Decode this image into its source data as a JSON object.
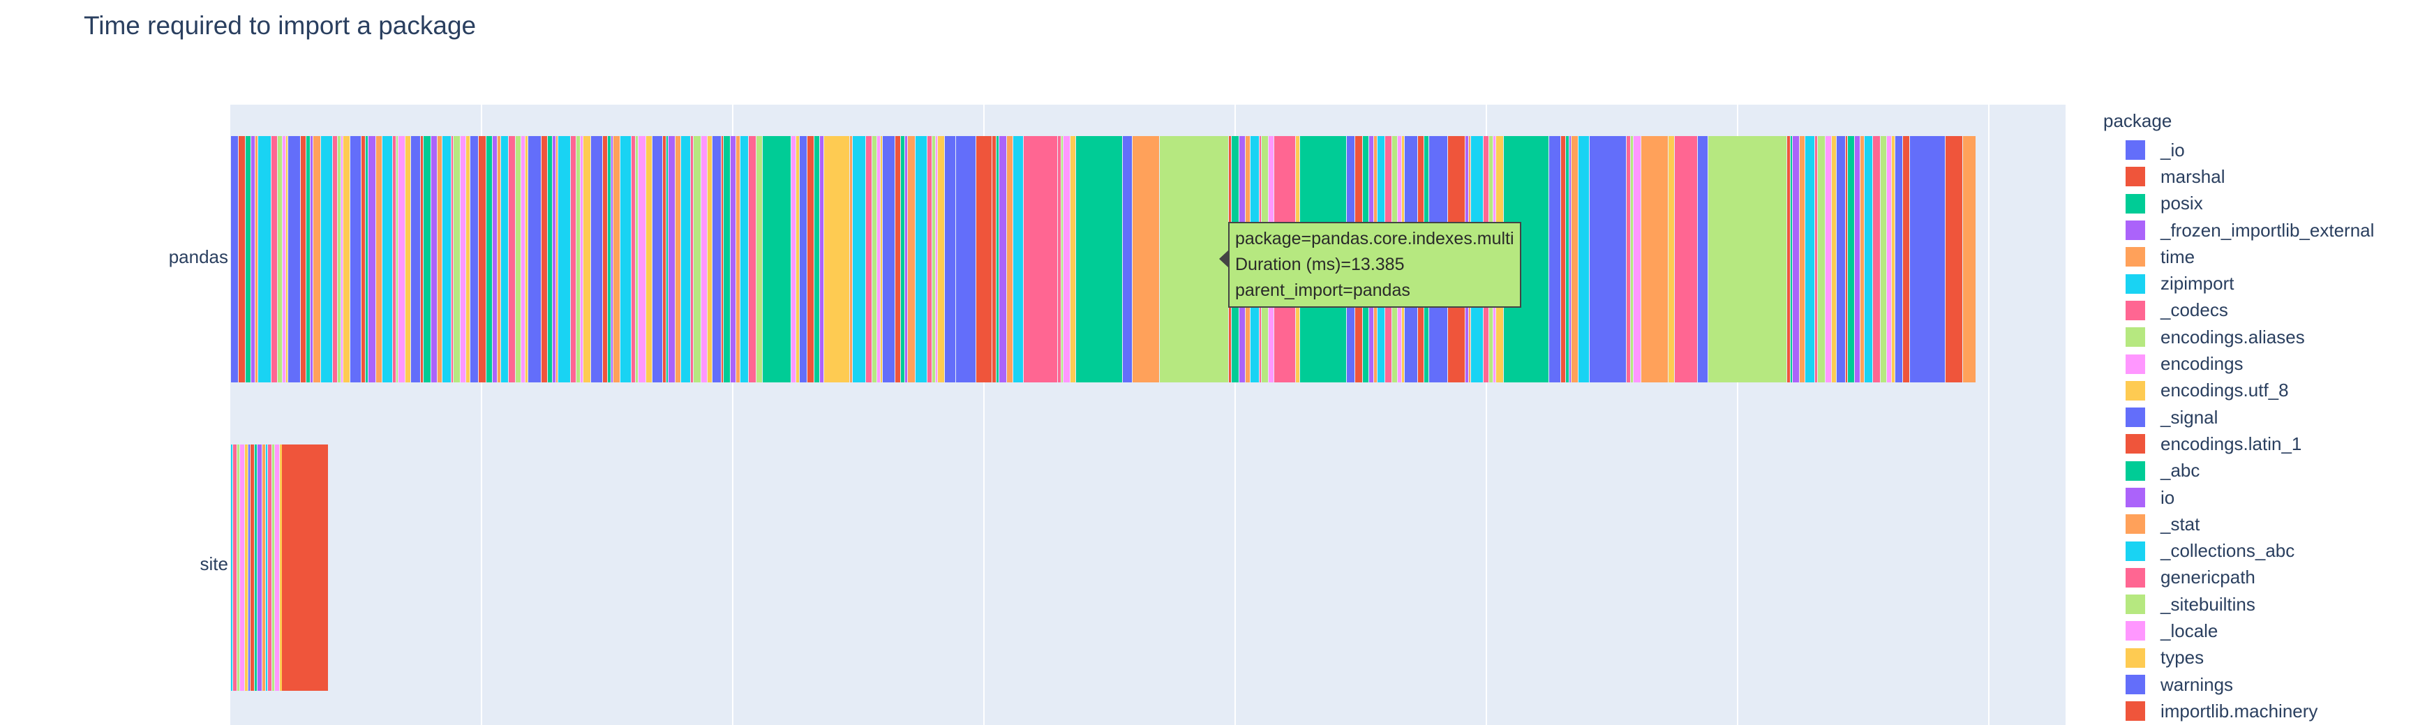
{
  "title": "Time required to import a package",
  "legend": {
    "title": "package",
    "items": [
      {
        "name": "_io",
        "color": "#636efa"
      },
      {
        "name": "marshal",
        "color": "#EF553B"
      },
      {
        "name": "posix",
        "color": "#00cc96"
      },
      {
        "name": "_frozen_importlib_external",
        "color": "#ab63fa"
      },
      {
        "name": "time",
        "color": "#FFA15A"
      },
      {
        "name": "zipimport",
        "color": "#19d3f3"
      },
      {
        "name": "_codecs",
        "color": "#FF6692"
      },
      {
        "name": "encodings.aliases",
        "color": "#B6E880"
      },
      {
        "name": "encodings",
        "color": "#FF97FF"
      },
      {
        "name": "encodings.utf_8",
        "color": "#FECB52"
      },
      {
        "name": "_signal",
        "color": "#636efa"
      },
      {
        "name": "encodings.latin_1",
        "color": "#EF553B"
      },
      {
        "name": "_abc",
        "color": "#00cc96"
      },
      {
        "name": "io",
        "color": "#ab63fa"
      },
      {
        "name": "_stat",
        "color": "#FFA15A"
      },
      {
        "name": "_collections_abc",
        "color": "#19d3f3"
      },
      {
        "name": "genericpath",
        "color": "#FF6692"
      },
      {
        "name": "_sitebuiltins",
        "color": "#B6E880"
      },
      {
        "name": "_locale",
        "color": "#FF97FF"
      },
      {
        "name": "types",
        "color": "#FECB52"
      },
      {
        "name": "warnings",
        "color": "#636efa"
      },
      {
        "name": "importlib.machinery",
        "color": "#EF553B"
      },
      {
        "name": "",
        "color": "#00cc96"
      }
    ]
  },
  "tooltip": {
    "line1": "package=pandas.core.indexes.multi",
    "line2": "Duration (ms)=13.385",
    "line3": "parent_import=pandas",
    "color": "#B6E880"
  },
  "chart_data": {
    "type": "bar",
    "orientation": "horizontal-stacked",
    "title": "Time required to import a package",
    "categories": [
      "pandas",
      "site"
    ],
    "xlabel": "",
    "ylabel": "",
    "legend_title": "package",
    "legend_position": "right",
    "palette": [
      "#636efa",
      "#EF553B",
      "#00cc96",
      "#ab63fa",
      "#FFA15A",
      "#19d3f3",
      "#FF6692",
      "#B6E880",
      "#FF97FF",
      "#FECB52"
    ],
    "grid": true,
    "highlighted_segment": {
      "category": "pandas",
      "package": "pandas.core.indexes.multi",
      "duration_ms": 13.385,
      "parent_import": "pandas"
    }
  }
}
